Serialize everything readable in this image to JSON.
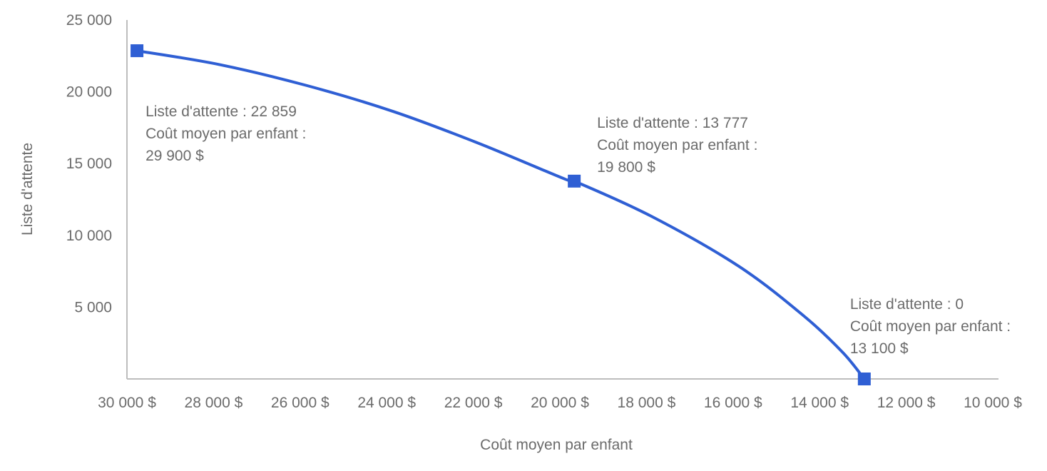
{
  "chart_data": {
    "type": "line",
    "title": "",
    "xlabel": "Coût moyen par enfant",
    "ylabel": "Liste d'attente",
    "xlim": [
      30000,
      10000
    ],
    "ylim": [
      0,
      25000
    ],
    "x_reversed": true,
    "grid": false,
    "x_ticks": [
      30000,
      28000,
      26000,
      24000,
      22000,
      20000,
      18000,
      16000,
      14000,
      12000,
      10000
    ],
    "x_tick_labels": [
      "30 000 $",
      "28 000 $",
      "26 000 $",
      "24 000 $",
      "22 000 $",
      "20 000 $",
      "18 000 $",
      "16 000 $",
      "14 000 $",
      "12 000 $",
      "10 000 $"
    ],
    "y_ticks": [
      5000,
      10000,
      15000,
      20000,
      25000
    ],
    "y_tick_labels": [
      "5 000",
      "10 000",
      "15 000",
      "20 000",
      "25 000"
    ],
    "line_color": "#2f5fd4",
    "series": [
      {
        "curve": [
          [
            29900,
            22859
          ],
          [
            28000,
            21900
          ],
          [
            26000,
            20450
          ],
          [
            24000,
            18650
          ],
          [
            22000,
            16400
          ],
          [
            20000,
            13900
          ],
          [
            19800,
            13777
          ],
          [
            18000,
            11300
          ],
          [
            16000,
            7850
          ],
          [
            14500,
            4400
          ],
          [
            13600,
            1850
          ],
          [
            13100,
            0
          ]
        ],
        "markers": [
          {
            "x": 29900,
            "y": 22859,
            "lines": [
              "Liste d'attente : 22 859",
              "Coût moyen par enfant :",
              "29 900 $"
            ]
          },
          {
            "x": 19800,
            "y": 13777,
            "lines": [
              "Liste d'attente : 13 777",
              "Coût moyen par enfant :",
              "19 800 $"
            ]
          },
          {
            "x": 13100,
            "y": 0,
            "lines": [
              "Liste d'attente : 0",
              "Coût moyen par enfant :",
              "13 100 $"
            ]
          }
        ]
      }
    ]
  }
}
